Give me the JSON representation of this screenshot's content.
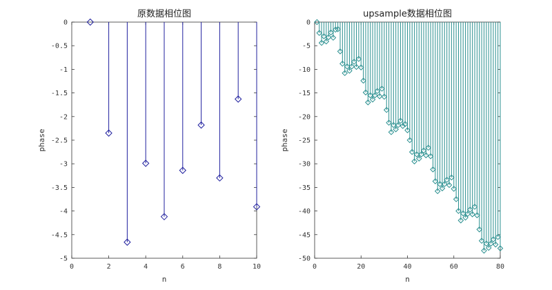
{
  "colors": {
    "left_stem": "#1f1f9e",
    "right_stem": "#2a8f8f",
    "axis": "#333333"
  },
  "chart_data": [
    {
      "type": "stem",
      "title": "原数据相位图",
      "xlabel": "n",
      "ylabel": "phase",
      "xlim": [
        0,
        10
      ],
      "ylim": [
        -5,
        0
      ],
      "xticks": [
        "0",
        "2",
        "4",
        "6",
        "8",
        "10"
      ],
      "yticks": [
        "0",
        "-0.5",
        "-1",
        "-1.5",
        "-2",
        "-2.5",
        "-3",
        "-3.5",
        "-4",
        "-4.5",
        "-5"
      ],
      "marker": "diamond",
      "x": [
        1,
        2,
        3,
        4,
        5,
        6,
        7,
        8,
        9,
        10
      ],
      "y": [
        0,
        -2.35,
        -4.66,
        -2.99,
        -4.12,
        -3.14,
        -2.18,
        -3.3,
        -1.63,
        -3.91
      ]
    },
    {
      "type": "stem",
      "title": "upsample数据相位图",
      "xlabel": "n",
      "ylabel": "phase",
      "xlim": [
        0,
        80
      ],
      "ylim": [
        -50,
        0
      ],
      "xticks": [
        "0",
        "20",
        "40",
        "60",
        "80"
      ],
      "yticks": [
        "0",
        "-5",
        "-10",
        "-15",
        "-20",
        "-25",
        "-30",
        "-35",
        "-40",
        "-45",
        "-50"
      ],
      "marker": "diamond",
      "x": [
        1,
        2,
        3,
        4,
        5,
        6,
        7,
        8,
        9,
        10,
        11,
        12,
        13,
        14,
        15,
        16,
        17,
        18,
        19,
        20,
        21,
        22,
        23,
        24,
        25,
        26,
        27,
        28,
        29,
        30,
        31,
        32,
        33,
        34,
        35,
        36,
        37,
        38,
        39,
        40,
        41,
        42,
        43,
        44,
        45,
        46,
        47,
        48,
        49,
        50,
        51,
        52,
        53,
        54,
        55,
        56,
        57,
        58,
        59,
        60,
        61,
        62,
        63,
        64,
        65,
        66,
        67,
        68,
        69,
        70,
        71,
        72,
        73,
        74,
        75,
        76,
        77,
        78,
        79,
        80
      ],
      "y": [
        0,
        -2.3,
        -4.4,
        -3.0,
        -4.1,
        -3.2,
        -2.2,
        -3.3,
        -1.6,
        -1.5,
        -6.2,
        -8.8,
        -10.8,
        -9.4,
        -10.3,
        -9.4,
        -8.4,
        -9.5,
        -7.8,
        -9.6,
        -12.4,
        -14.9,
        -17.0,
        -15.5,
        -16.4,
        -15.5,
        -14.6,
        -15.7,
        -14.1,
        -15.8,
        -18.6,
        -21.3,
        -23.3,
        -21.8,
        -22.7,
        -21.8,
        -20.9,
        -22.0,
        -21.6,
        -22.9,
        -25.0,
        -27.5,
        -29.5,
        -28.0,
        -28.9,
        -28.0,
        -27.2,
        -28.2,
        -26.6,
        -28.4,
        -31.2,
        -33.7,
        -35.8,
        -34.3,
        -35.2,
        -34.3,
        -33.4,
        -34.5,
        -32.9,
        -35.3,
        -37.5,
        -40.0,
        -42.0,
        -40.5,
        -41.4,
        -40.6,
        -39.7,
        -40.7,
        -39.1,
        -40.9,
        -43.9,
        -46.3,
        -48.4,
        -46.9,
        -47.8,
        -46.9,
        -46.0,
        -47.1,
        -45.5,
        -47.9
      ]
    }
  ]
}
